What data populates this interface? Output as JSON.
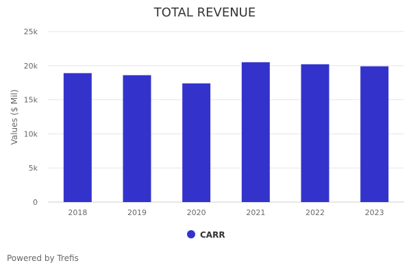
{
  "chart_data": {
    "type": "bar",
    "title": "TOTAL REVENUE",
    "xlabel": "",
    "ylabel": "Values ($ Mil)",
    "categories": [
      "2018",
      "2019",
      "2020",
      "2021",
      "2022",
      "2023"
    ],
    "series": [
      {
        "name": "CARR",
        "values": [
          18900,
          18600,
          17400,
          20500,
          20200,
          19900
        ]
      }
    ],
    "ylim": [
      0,
      25000
    ],
    "yticks": [
      0,
      5000,
      10000,
      15000,
      20000,
      25000
    ],
    "ytick_labels": [
      "0",
      "5k",
      "10k",
      "15k",
      "20k",
      "25k"
    ],
    "grid": true,
    "legend_position": "bottom-center"
  },
  "colors": {
    "bar": "#3333cc",
    "grid": "#e6e6e6",
    "axis_text": "#666666",
    "title": "#333333"
  },
  "footer": {
    "credit": "Powered by Trefis"
  }
}
